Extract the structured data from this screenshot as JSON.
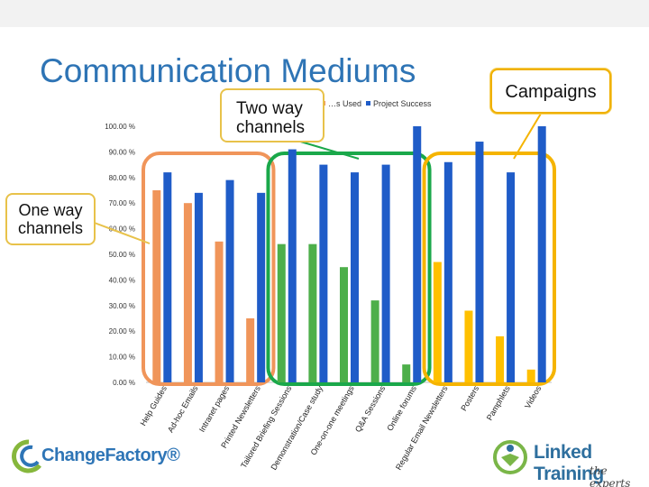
{
  "slide": {
    "title": "Communication Mediums",
    "callouts": {
      "one_way": "One way channels",
      "two_way": "Two way channels",
      "campaigns": "Campaigns"
    }
  },
  "logos": {
    "left": "ChangeFactory®",
    "right": "Linked Training",
    "right_tagline": "the experts"
  },
  "colors": {
    "one_way_group": "#f0955a",
    "two_way_group": "#4daf4a",
    "campaigns_group": "#ffc000",
    "project_success": "#1f5cc8"
  },
  "chart_data": {
    "type": "bar",
    "categories": [
      "Help Guides",
      "Ad-hoc Emails",
      "Intranet pages",
      "Printed Newsletters",
      "Tailored Briefing Sessions",
      "Demonstration/Case study",
      "One-on-one meetings",
      "Q&A Sessions",
      "Online forums",
      "Regular Email Newsletters",
      "Posters",
      "Pamphlets",
      "Videos"
    ],
    "groups": [
      {
        "label": "One way channels",
        "categories": [
          "Help Guides",
          "Ad-hoc Emails",
          "Intranet pages",
          "Printed Newsletters"
        ]
      },
      {
        "label": "Two way channels",
        "categories": [
          "Tailored Briefing Sessions",
          "Demonstration/Case study",
          "One-on-one meetings",
          "Q&A Sessions",
          "Online forums"
        ]
      },
      {
        "label": "Campaigns",
        "categories": [
          "Regular Email Newsletters",
          "Posters",
          "Pamphlets",
          "Videos"
        ]
      }
    ],
    "series": [
      {
        "name": "…s Used",
        "values": [
          75,
          70,
          55,
          25,
          54,
          54,
          45,
          32,
          7,
          47,
          28,
          18,
          5
        ]
      },
      {
        "name": "Project Success",
        "values": [
          82,
          74,
          79,
          74,
          91,
          85,
          82,
          85,
          100,
          86,
          94,
          82,
          100
        ]
      }
    ],
    "ylim": [
      0,
      100
    ],
    "yticks": [
      "0.00 %",
      "10.00 %",
      "20.00 %",
      "30.00 %",
      "40.00 %",
      "50.00 %",
      "60.00 %",
      "70.00 %",
      "80.00 %",
      "90.00 %",
      "100.00 %"
    ],
    "legend_position": "top",
    "grid": false
  }
}
